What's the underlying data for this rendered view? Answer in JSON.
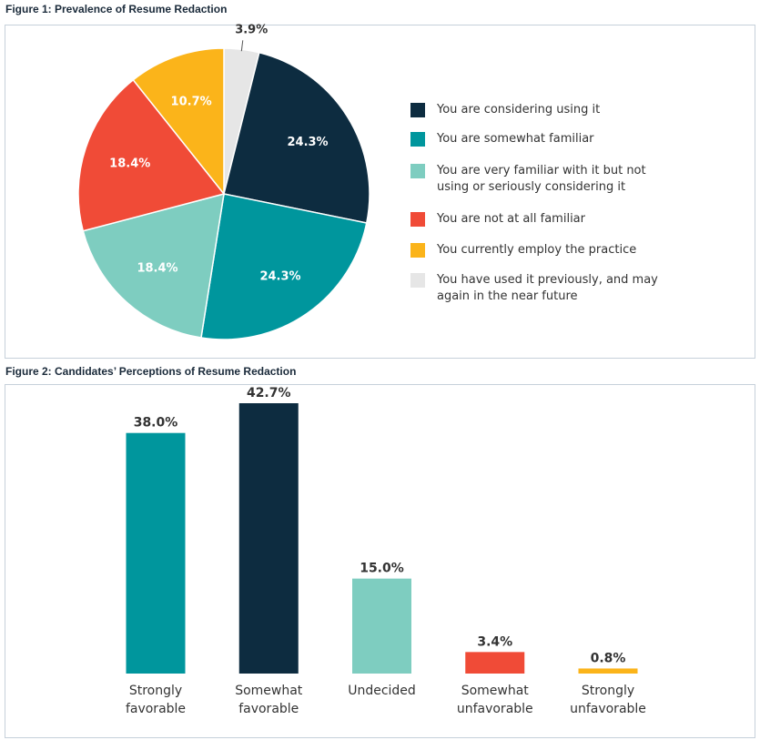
{
  "chart_data": [
    {
      "type": "pie",
      "title": "Figure 1: Prevalence of Resume Redaction",
      "categories": [
        "You are considering using it",
        "You are somewhat familiar",
        "You are very familiar with it but not using or seriously considering it",
        "You are not at all familiar",
        "You currently employ the practice",
        "You have used it previously, and may again in the near future"
      ],
      "values": [
        24.3,
        24.3,
        18.4,
        18.4,
        10.7,
        3.9
      ],
      "value_labels": [
        "24.3%",
        "24.3%",
        "18.4%",
        "18.4%",
        "10.7%",
        "3.9%"
      ],
      "colors": [
        "#0d2c40",
        "#00969d",
        "#7ecdc0",
        "#f04b37",
        "#fbb41a",
        "#e6e6e6"
      ],
      "legend": "right"
    },
    {
      "type": "bar",
      "title": "Figure 2: Candidates’ Perceptions of Resume Redaction",
      "categories": [
        "Strongly favorable",
        "Somewhat favorable",
        "Undecided",
        "Somewhat unfavorable",
        "Strongly unfavorable"
      ],
      "values": [
        38.0,
        42.7,
        15.0,
        3.4,
        0.8
      ],
      "value_labels": [
        "38.0%",
        "42.7%",
        "15.0%",
        "3.4%",
        "0.8%"
      ],
      "colors": [
        "#00969d",
        "#0d2c40",
        "#7ecdc0",
        "#f04b37",
        "#fbb41a"
      ]
    }
  ]
}
